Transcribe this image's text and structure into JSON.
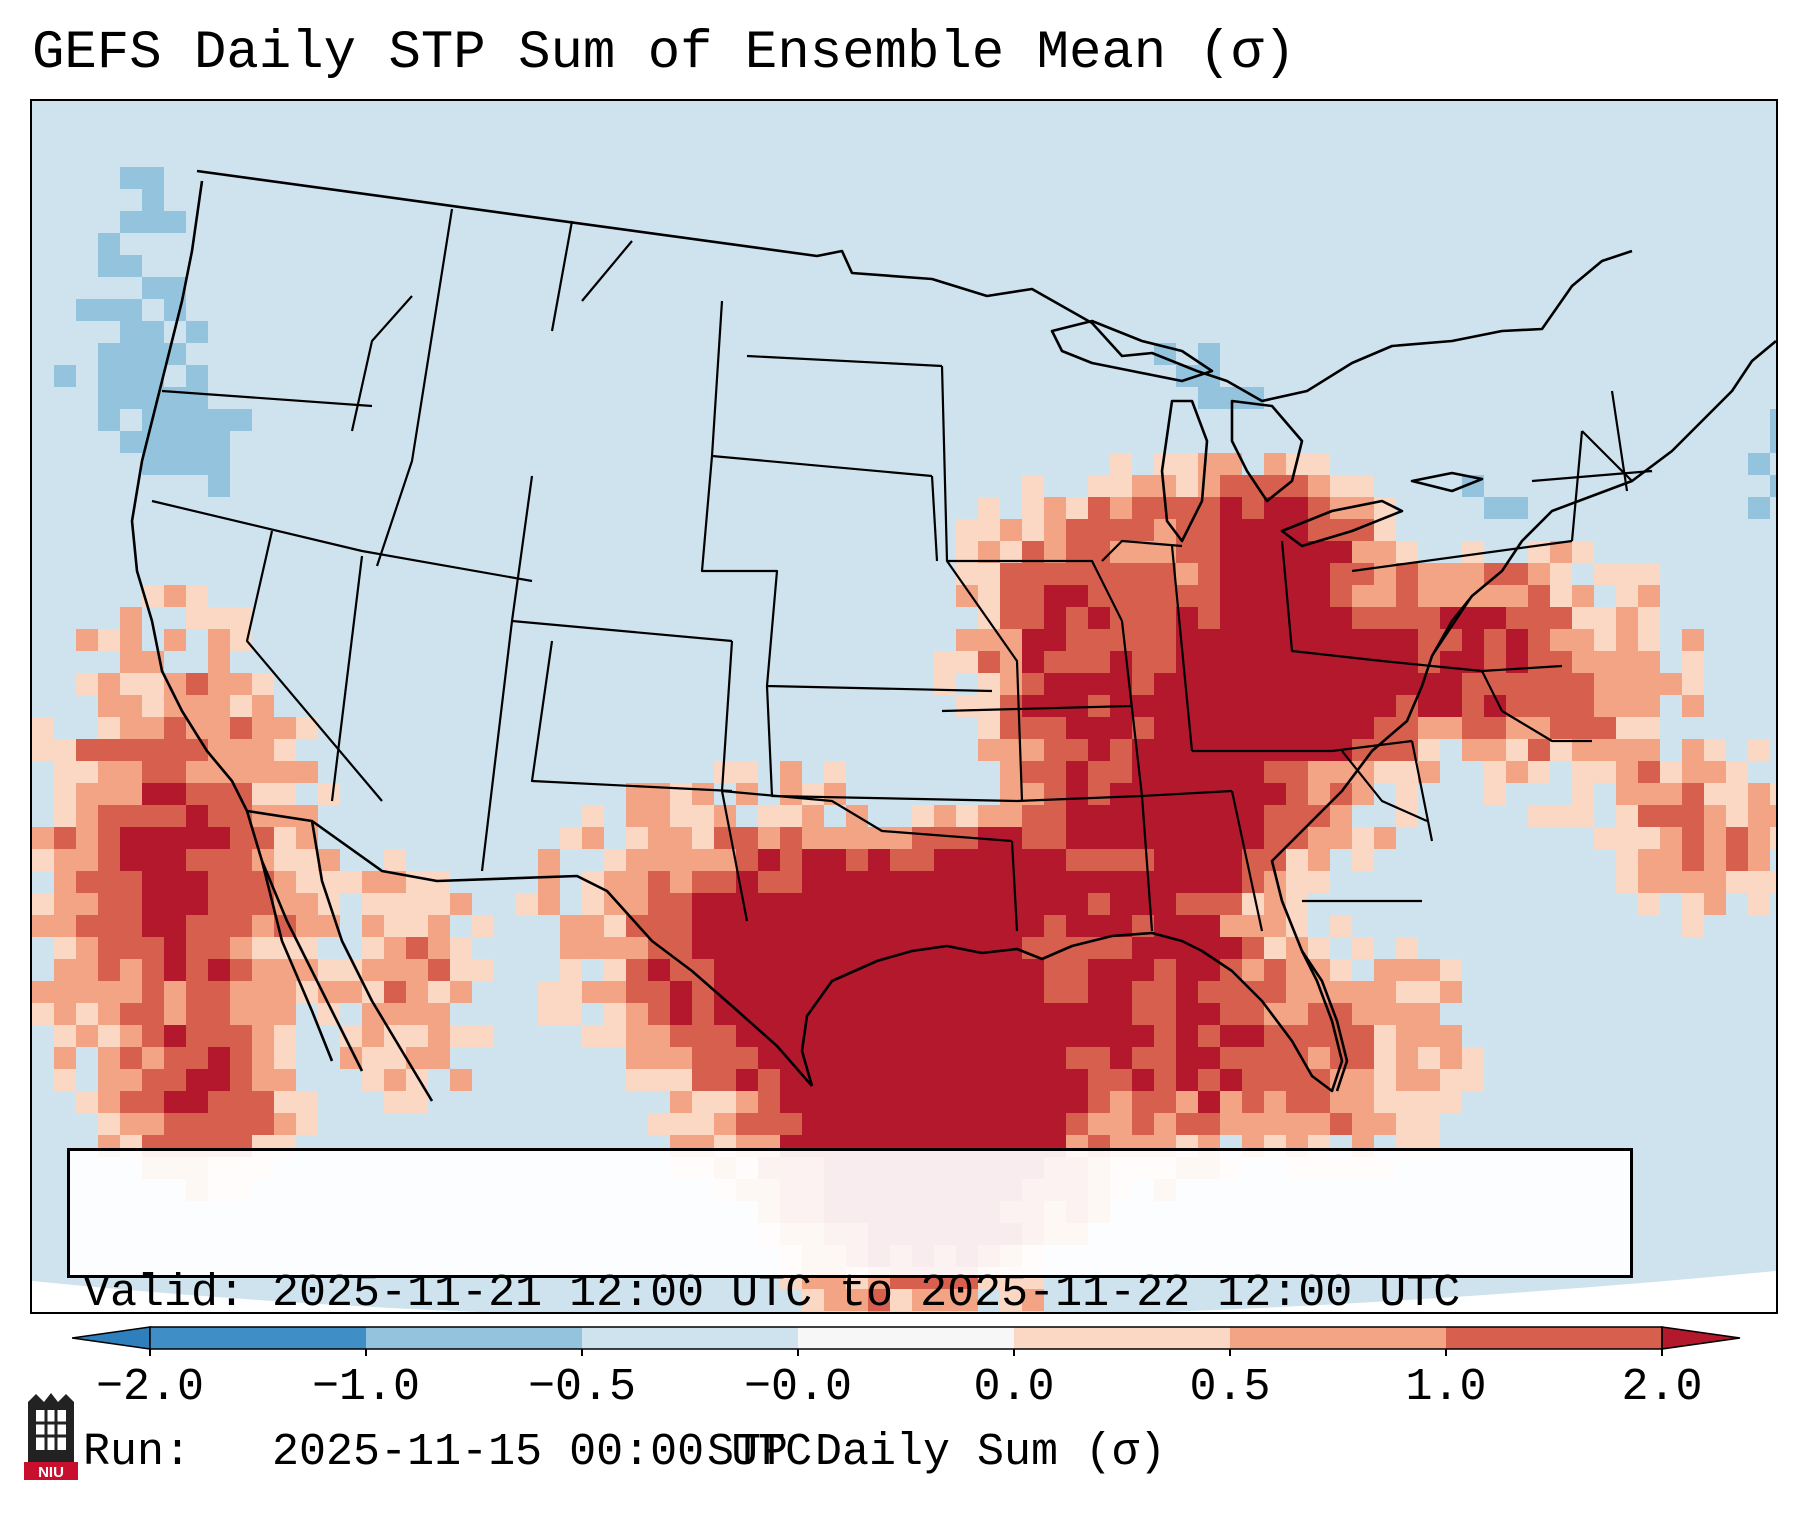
{
  "title": "GEFS Daily STP Sum of Ensemble Mean (σ)",
  "info": {
    "valid_label": "Valid:",
    "valid_value": "2025-11-21 12:00 UTC to 2025-11-22 12:00 UTC",
    "run_label": "Run:",
    "run_value": "2025-11-15 00:00 UTC"
  },
  "colorbar": {
    "label": "STP Daily Sum (σ)",
    "tick_labels": [
      "−2.0",
      "−1.0",
      "−0.5",
      "−0.0",
      "0.0",
      "0.5",
      "1.0",
      "2.0"
    ],
    "bins": [
      {
        "range": "< -2.0",
        "color": "#2f7fbd"
      },
      {
        "range": "-2.0 to -1.0",
        "color": "#3f8ec6"
      },
      {
        "range": "-1.0 to -0.5",
        "color": "#94c3de"
      },
      {
        "range": "-0.5 to -0.0",
        "color": "#cfe3ef"
      },
      {
        "range": "-0.0 to 0.0",
        "color": "#f7f7f7"
      },
      {
        "range": "0.0 to 0.5",
        "color": "#fbd8c4"
      },
      {
        "range": "0.5 to 1.0",
        "color": "#f2a485"
      },
      {
        "range": "1.0 to 2.0",
        "color": "#d6604d"
      },
      {
        "range": "> 2.0",
        "color": "#b3182c"
      }
    ]
  },
  "map": {
    "background_color": "#cfe3ef",
    "regions": [
      {
        "name": "southern-plains-texas",
        "level": 2
      },
      {
        "name": "gulf-coast-louisiana",
        "level": 3
      },
      {
        "name": "ohio-tennessee-valley",
        "level": 3
      },
      {
        "name": "mississippi-valley",
        "level": 2
      },
      {
        "name": "southeast",
        "level": 2
      },
      {
        "name": "northeast-mid-atlantic",
        "level": 2
      },
      {
        "name": "offshore-atlantic",
        "level": 1
      },
      {
        "name": "pacific-offshore-baja",
        "level": 2
      },
      {
        "name": "pacific-northwest-offshore",
        "level": -1
      },
      {
        "name": "great-lakes",
        "level": -1
      }
    ]
  },
  "logo": {
    "text": "NIU",
    "color": "#c8102e"
  }
}
